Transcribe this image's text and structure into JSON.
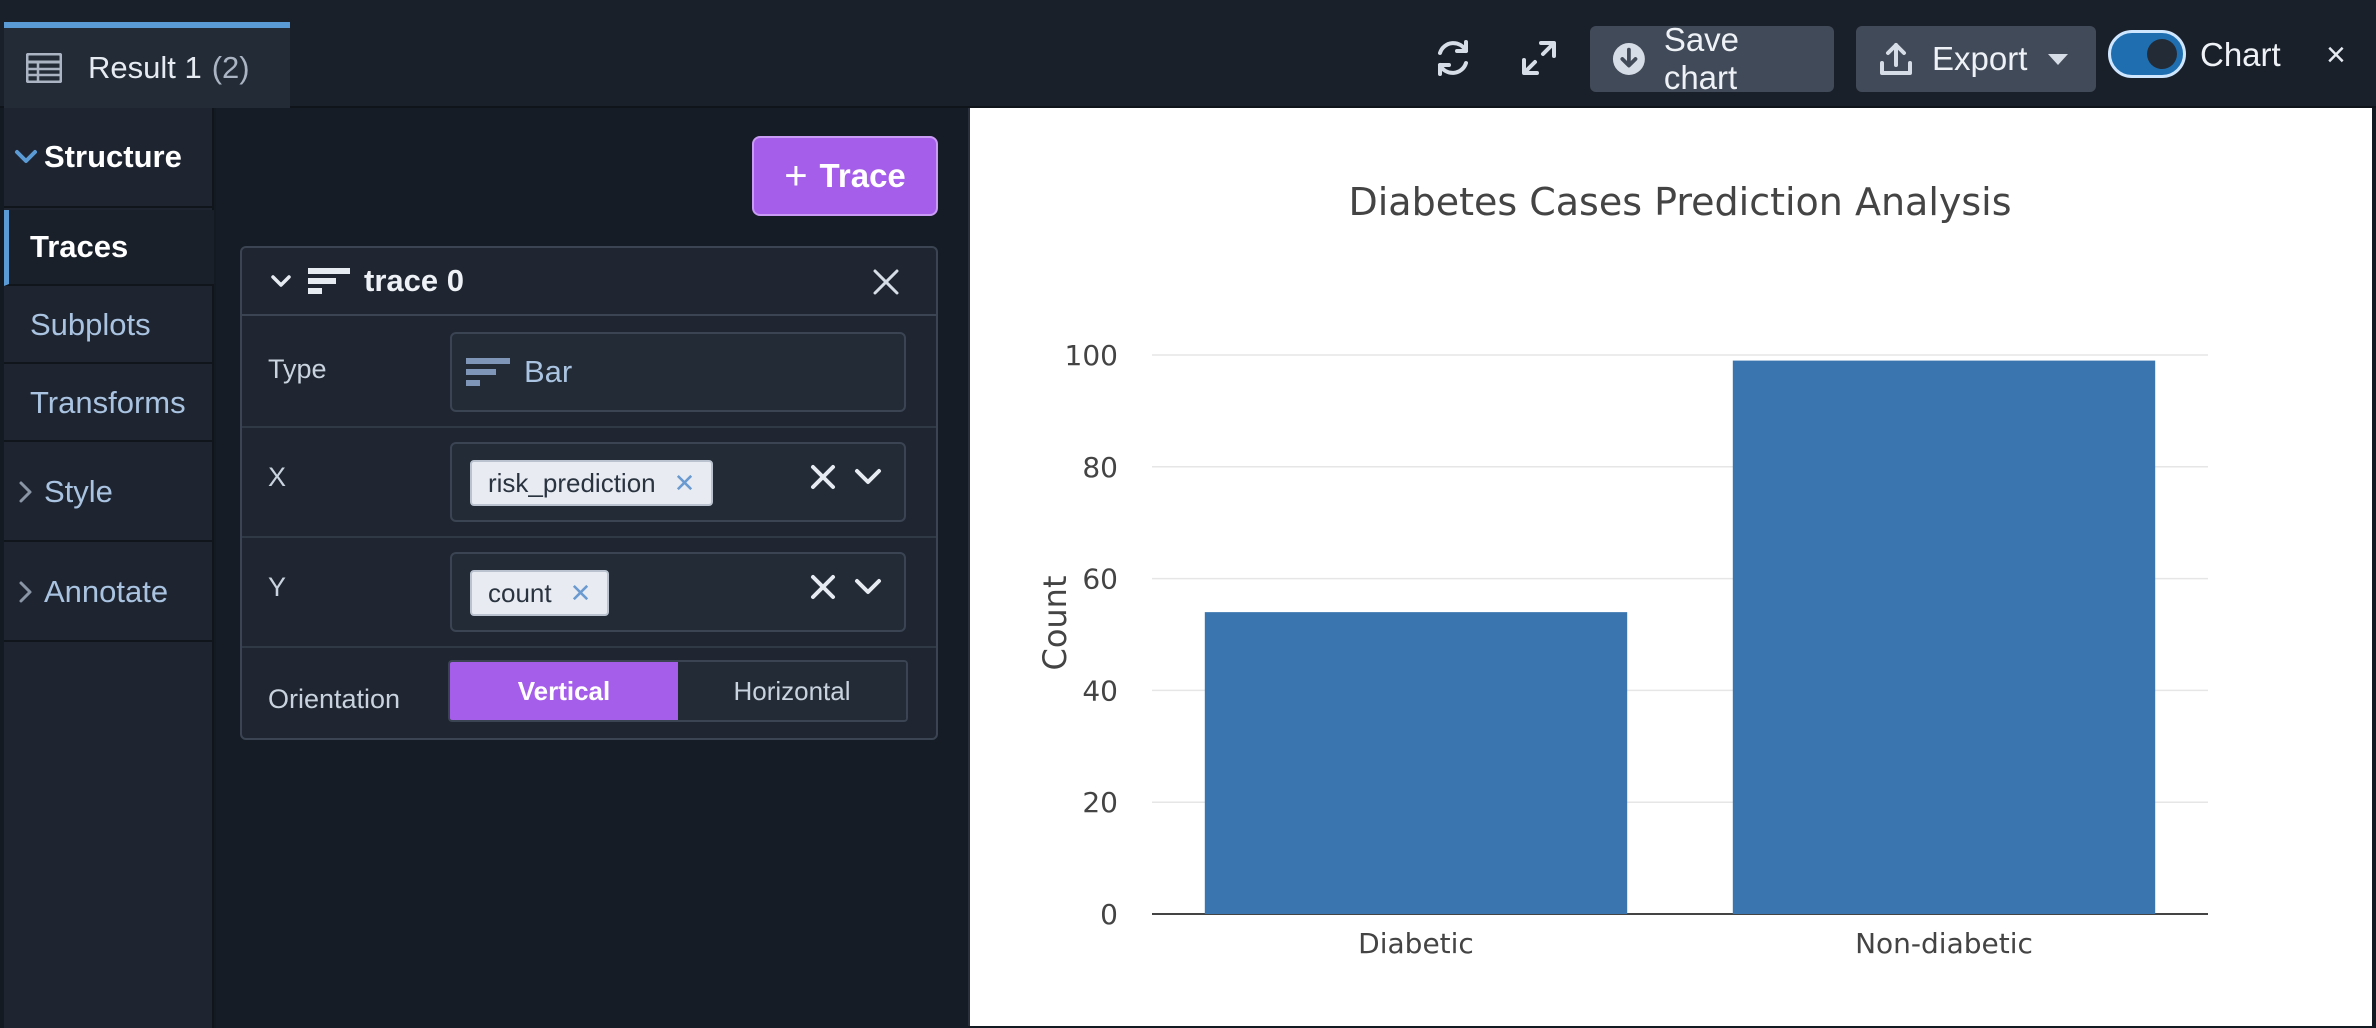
{
  "tab": {
    "title": "Result 1",
    "count": "(2)",
    "icon": "table-icon"
  },
  "toolbar": {
    "refresh_icon": "refresh-icon",
    "expand_icon": "expand-icon",
    "save_label": "Save chart",
    "export_label": "Export",
    "toggle_label": "Chart",
    "close_label": "×"
  },
  "sidebar": {
    "structure": "Structure",
    "items": [
      "Traces",
      "Subplots",
      "Transforms"
    ],
    "style": "Style",
    "annotate": "Annotate"
  },
  "editor": {
    "add_trace_label": "Trace",
    "trace": {
      "name": "trace 0",
      "type_label": "Type",
      "type_value": "Bar",
      "x_label": "X",
      "x_value": "risk_prediction",
      "y_label": "Y",
      "y_value": "count",
      "orientation_label": "Orientation",
      "orientation_options": [
        "Vertical",
        "Horizontal"
      ],
      "orientation_selected": "Vertical"
    }
  },
  "colors": {
    "accent": "#a55eea",
    "bar": "#3a75af",
    "toggle": "#1f6fb0"
  },
  "chart_data": {
    "type": "bar",
    "title": "Diabetes Cases Prediction Analysis",
    "xlabel": "",
    "ylabel": "Count",
    "categories": [
      "Diabetic",
      "Non-diabetic"
    ],
    "values": [
      54,
      99
    ],
    "ylim": [
      0,
      100
    ],
    "yticks": [
      0,
      20,
      40,
      60,
      80,
      100
    ],
    "grid": true
  }
}
